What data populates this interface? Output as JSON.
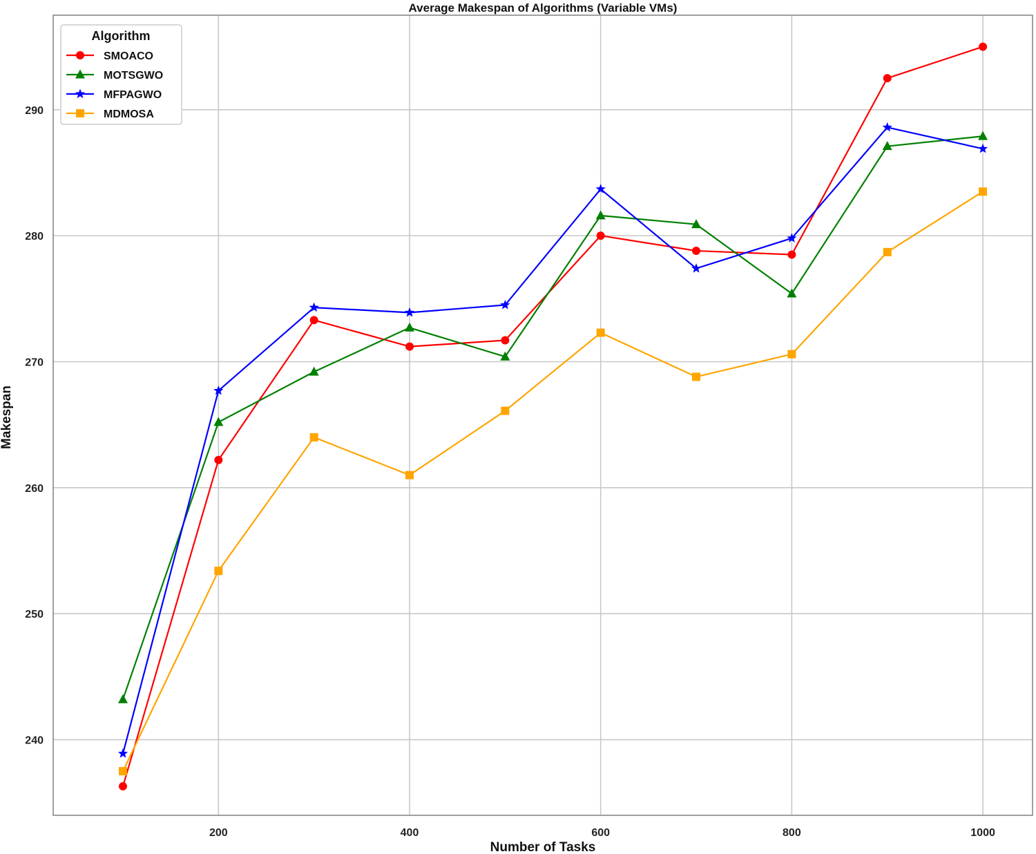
{
  "chart_data": {
    "type": "line",
    "title": "Average Makespan of Algorithms (Variable VMs)",
    "xlabel": "Number of Tasks",
    "ylabel": "Makespan",
    "x": [
      100,
      200,
      300,
      400,
      500,
      600,
      700,
      800,
      900,
      1000
    ],
    "xticks": [
      200,
      400,
      600,
      800,
      1000
    ],
    "yticks": [
      240,
      250,
      260,
      270,
      280,
      290
    ],
    "xlim": [
      27,
      1052
    ],
    "ylim": [
      234,
      297.5
    ],
    "grid": true,
    "legend": {
      "title": "Algorithm",
      "placement": "top-left"
    },
    "series": [
      {
        "name": "SMOACO",
        "color": "#ff0000",
        "marker": "circle",
        "values": [
          236.3,
          262.2,
          273.3,
          271.2,
          271.7,
          280.0,
          278.8,
          278.5,
          292.5,
          295.0
        ]
      },
      {
        "name": "MOTSGWO",
        "color": "#008000",
        "marker": "triangle",
        "values": [
          243.2,
          265.2,
          269.2,
          272.7,
          270.4,
          281.6,
          280.9,
          275.4,
          287.1,
          287.9
        ]
      },
      {
        "name": "MFPAGWO",
        "color": "#0000ff",
        "marker": "star",
        "values": [
          238.9,
          267.7,
          274.3,
          273.9,
          274.5,
          283.7,
          277.4,
          279.8,
          288.6,
          286.9
        ]
      },
      {
        "name": "MDMOSA",
        "color": "#ffa500",
        "marker": "square",
        "values": [
          237.5,
          253.4,
          264.0,
          261.0,
          266.1,
          272.3,
          268.8,
          270.6,
          278.7,
          283.5
        ]
      }
    ]
  }
}
